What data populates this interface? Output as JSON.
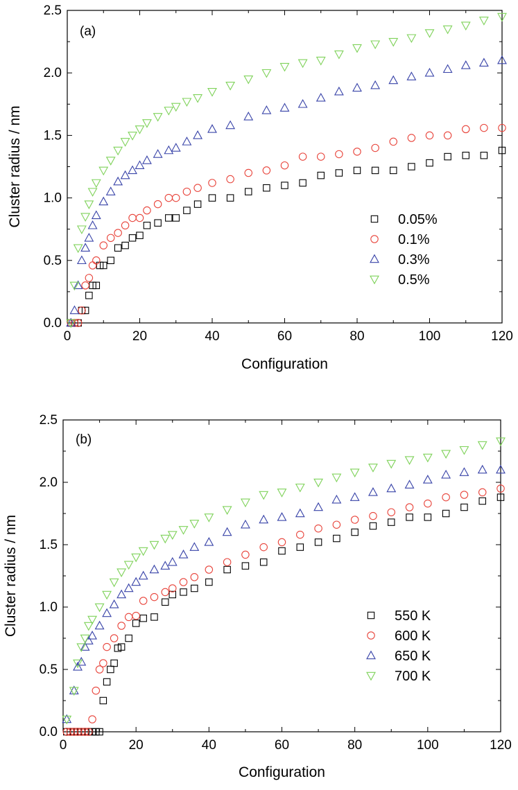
{
  "chart_data": [
    {
      "type": "scatter",
      "panel_label": "(a)",
      "xlabel": "Configuration",
      "ylabel": "Cluster radius / nm",
      "xlim": [
        0,
        120
      ],
      "ylim": [
        0,
        2.5
      ],
      "xticks": [
        "0",
        "20",
        "40",
        "60",
        "80",
        "100",
        "120"
      ],
      "yticks": [
        "0.0",
        "0.5",
        "1.0",
        "1.5",
        "2.0",
        "2.5"
      ],
      "legend_position": "center-right",
      "series": [
        {
          "name": "0.05%",
          "marker": "square",
          "color": "#000000",
          "x": [
            1,
            2,
            3,
            4,
            5,
            6,
            7,
            8,
            9,
            10,
            12,
            14,
            16,
            18,
            20,
            22,
            25,
            28,
            30,
            33,
            36,
            40,
            45,
            50,
            55,
            60,
            65,
            70,
            75,
            80,
            85,
            90,
            95,
            100,
            105,
            110,
            115,
            120
          ],
          "y": [
            0,
            0,
            0,
            0.1,
            0.1,
            0.22,
            0.3,
            0.3,
            0.46,
            0.46,
            0.5,
            0.6,
            0.62,
            0.68,
            0.7,
            0.78,
            0.8,
            0.84,
            0.84,
            0.9,
            0.95,
            1.0,
            1.0,
            1.05,
            1.08,
            1.1,
            1.12,
            1.18,
            1.2,
            1.22,
            1.22,
            1.22,
            1.25,
            1.28,
            1.33,
            1.34,
            1.34,
            1.38
          ]
        },
        {
          "name": "0.1%",
          "marker": "circle",
          "color": "#e8433a",
          "x": [
            1,
            2,
            3,
            4,
            5,
            6,
            7,
            8,
            10,
            12,
            14,
            16,
            18,
            20,
            22,
            25,
            28,
            30,
            33,
            36,
            40,
            45,
            50,
            55,
            60,
            65,
            70,
            75,
            80,
            85,
            90,
            95,
            100,
            105,
            110,
            115,
            120
          ],
          "y": [
            0,
            0,
            0,
            0.1,
            0.3,
            0.36,
            0.46,
            0.5,
            0.62,
            0.68,
            0.72,
            0.78,
            0.84,
            0.84,
            0.9,
            0.95,
            1.0,
            1.0,
            1.05,
            1.08,
            1.12,
            1.15,
            1.2,
            1.22,
            1.26,
            1.33,
            1.33,
            1.35,
            1.37,
            1.4,
            1.45,
            1.48,
            1.5,
            1.5,
            1.55,
            1.56,
            1.56
          ]
        },
        {
          "name": "0.3%",
          "marker": "triangle-up",
          "color": "#3843a8",
          "x": [
            1,
            2,
            3,
            4,
            5,
            6,
            7,
            8,
            10,
            12,
            14,
            16,
            18,
            20,
            22,
            25,
            28,
            30,
            33,
            36,
            40,
            45,
            50,
            55,
            60,
            65,
            70,
            75,
            80,
            85,
            90,
            95,
            100,
            105,
            110,
            115,
            120
          ],
          "y": [
            0,
            0.1,
            0.3,
            0.5,
            0.6,
            0.68,
            0.78,
            0.86,
            0.97,
            1.05,
            1.13,
            1.18,
            1.22,
            1.26,
            1.3,
            1.35,
            1.38,
            1.4,
            1.45,
            1.5,
            1.55,
            1.58,
            1.65,
            1.7,
            1.72,
            1.75,
            1.8,
            1.85,
            1.88,
            1.9,
            1.94,
            1.97,
            2.0,
            2.03,
            2.06,
            2.08,
            2.1
          ]
        },
        {
          "name": "0.5%",
          "marker": "triangle-down",
          "color": "#7fd25a",
          "x": [
            1,
            2,
            3,
            4,
            5,
            6,
            7,
            8,
            10,
            12,
            14,
            16,
            18,
            20,
            22,
            25,
            28,
            30,
            33,
            36,
            40,
            45,
            50,
            55,
            60,
            65,
            70,
            75,
            80,
            85,
            90,
            95,
            100,
            105,
            110,
            115,
            120
          ],
          "y": [
            0,
            0.3,
            0.6,
            0.75,
            0.85,
            0.95,
            1.05,
            1.12,
            1.22,
            1.3,
            1.38,
            1.45,
            1.5,
            1.55,
            1.6,
            1.65,
            1.7,
            1.73,
            1.77,
            1.8,
            1.85,
            1.9,
            1.95,
            2.0,
            2.05,
            2.08,
            2.1,
            2.15,
            2.2,
            2.23,
            2.25,
            2.28,
            2.32,
            2.35,
            2.38,
            2.42,
            2.45
          ]
        }
      ]
    },
    {
      "type": "scatter",
      "panel_label": "(b)",
      "xlabel": "Configuration",
      "ylabel": "Cluster radius / nm",
      "xlim": [
        0,
        120
      ],
      "ylim": [
        0,
        2.5
      ],
      "xticks": [
        "0",
        "20",
        "40",
        "60",
        "80",
        "100",
        "120"
      ],
      "yticks": [
        "0.0",
        "0.5",
        "1.0",
        "1.5",
        "2.0",
        "2.5"
      ],
      "legend_position": "center-right",
      "series": [
        {
          "name": "550 K",
          "marker": "square",
          "color": "#000000",
          "x": [
            1,
            2,
            3,
            4,
            5,
            6,
            7,
            8,
            9,
            10,
            11,
            12,
            13,
            14,
            15,
            16,
            18,
            20,
            22,
            25,
            28,
            30,
            33,
            36,
            40,
            45,
            50,
            55,
            60,
            65,
            70,
            75,
            80,
            85,
            90,
            95,
            100,
            105,
            110,
            115,
            120
          ],
          "y": [
            0,
            0,
            0,
            0,
            0,
            0,
            0,
            0,
            0,
            0,
            0.25,
            0.4,
            0.5,
            0.55,
            0.67,
            0.68,
            0.75,
            0.87,
            0.91,
            0.92,
            1.04,
            1.1,
            1.12,
            1.15,
            1.2,
            1.3,
            1.33,
            1.36,
            1.45,
            1.48,
            1.52,
            1.55,
            1.6,
            1.65,
            1.68,
            1.72,
            1.72,
            1.75,
            1.8,
            1.85,
            1.88
          ]
        },
        {
          "name": "600 K",
          "marker": "circle",
          "color": "#e8433a",
          "x": [
            1,
            2,
            3,
            4,
            5,
            6,
            7,
            8,
            9,
            10,
            11,
            12,
            14,
            16,
            18,
            20,
            22,
            25,
            28,
            30,
            33,
            36,
            40,
            45,
            50,
            55,
            60,
            65,
            70,
            75,
            80,
            85,
            90,
            95,
            100,
            105,
            110,
            115,
            120
          ],
          "y": [
            0,
            0,
            0,
            0,
            0,
            0,
            0,
            0.1,
            0.33,
            0.5,
            0.55,
            0.68,
            0.75,
            0.85,
            0.92,
            0.93,
            1.05,
            1.08,
            1.12,
            1.15,
            1.2,
            1.24,
            1.3,
            1.36,
            1.42,
            1.48,
            1.52,
            1.58,
            1.63,
            1.66,
            1.7,
            1.73,
            1.76,
            1.8,
            1.83,
            1.88,
            1.9,
            1.92,
            1.95
          ]
        },
        {
          "name": "650 K",
          "marker": "triangle-up",
          "color": "#3843a8",
          "x": [
            1,
            3,
            4,
            5,
            6,
            7,
            8,
            10,
            12,
            14,
            16,
            18,
            20,
            22,
            25,
            28,
            30,
            33,
            36,
            40,
            45,
            50,
            55,
            60,
            65,
            70,
            75,
            80,
            85,
            90,
            95,
            100,
            105,
            110,
            115,
            120
          ],
          "y": [
            0.1,
            0.33,
            0.52,
            0.56,
            0.68,
            0.73,
            0.77,
            0.85,
            0.95,
            1.02,
            1.1,
            1.15,
            1.2,
            1.25,
            1.3,
            1.33,
            1.36,
            1.42,
            1.48,
            1.52,
            1.6,
            1.66,
            1.7,
            1.72,
            1.75,
            1.8,
            1.86,
            1.88,
            1.92,
            1.95,
            1.98,
            2.02,
            2.06,
            2.08,
            2.1,
            2.1
          ]
        },
        {
          "name": "700 K",
          "marker": "triangle-down",
          "color": "#7fd25a",
          "x": [
            1,
            3,
            4,
            5,
            6,
            7,
            8,
            10,
            12,
            14,
            16,
            18,
            20,
            22,
            25,
            28,
            30,
            33,
            36,
            40,
            45,
            50,
            55,
            60,
            65,
            70,
            75,
            80,
            85,
            90,
            95,
            100,
            105,
            110,
            115,
            120
          ],
          "y": [
            0.1,
            0.33,
            0.55,
            0.68,
            0.75,
            0.85,
            0.9,
            1.0,
            1.1,
            1.2,
            1.28,
            1.34,
            1.4,
            1.45,
            1.5,
            1.55,
            1.58,
            1.62,
            1.67,
            1.72,
            1.78,
            1.84,
            1.9,
            1.92,
            1.96,
            2.0,
            2.04,
            2.08,
            2.12,
            2.15,
            2.18,
            2.2,
            2.23,
            2.26,
            2.3,
            2.33
          ]
        }
      ]
    }
  ]
}
